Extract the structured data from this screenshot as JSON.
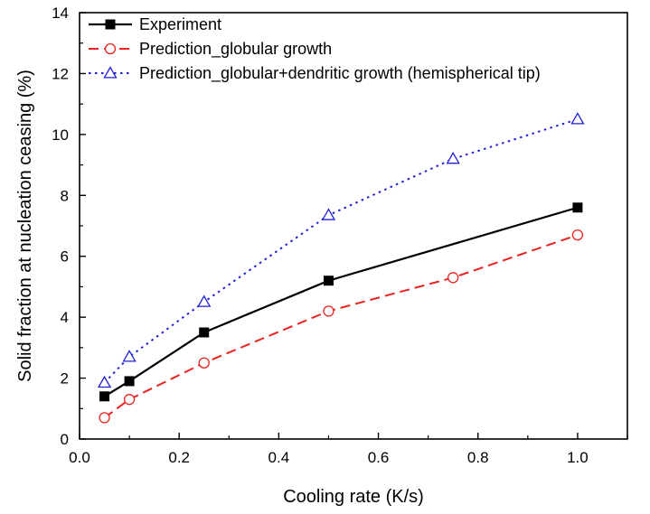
{
  "chart_data": {
    "type": "line",
    "title": "",
    "xlabel": "Cooling rate (K/s)",
    "ylabel": "Solid fraction at nucleation ceasing (%)",
    "xlim": [
      0.0,
      1.1
    ],
    "ylim": [
      0,
      14
    ],
    "xticks": [
      0.0,
      0.2,
      0.4,
      0.6,
      0.8,
      1.0
    ],
    "xtick_labels": [
      "0.0",
      "0.2",
      "0.4",
      "0.6",
      "0.8",
      "1.0"
    ],
    "yticks": [
      0,
      2,
      4,
      6,
      8,
      10,
      12,
      14
    ],
    "ytick_labels": [
      "0",
      "2",
      "4",
      "6",
      "8",
      "10",
      "12",
      "14"
    ],
    "grid": false,
    "legend_position": "top-left",
    "series": [
      {
        "name": "Experiment",
        "color": "#000000",
        "line_style": "solid",
        "marker": "filled-square",
        "x": [
          0.05,
          0.1,
          0.25,
          0.5,
          1.0
        ],
        "y": [
          1.4,
          1.9,
          3.5,
          5.2,
          7.6
        ]
      },
      {
        "name": "Prediction_globular growth",
        "color": "#e8231f",
        "line_style": "dashed",
        "marker": "open-circle",
        "x": [
          0.05,
          0.1,
          0.25,
          0.5,
          0.75,
          1.0
        ],
        "y": [
          0.7,
          1.3,
          2.5,
          4.2,
          5.3,
          6.7
        ]
      },
      {
        "name": "Prediction_globular+dendritic growth (hemispherical tip)",
        "color": "#1f1fd6",
        "line_style": "dotted",
        "marker": "open-triangle",
        "x": [
          0.05,
          0.1,
          0.25,
          0.5,
          0.75,
          1.0
        ],
        "y": [
          1.85,
          2.7,
          4.5,
          7.35,
          9.2,
          10.5
        ]
      }
    ]
  }
}
